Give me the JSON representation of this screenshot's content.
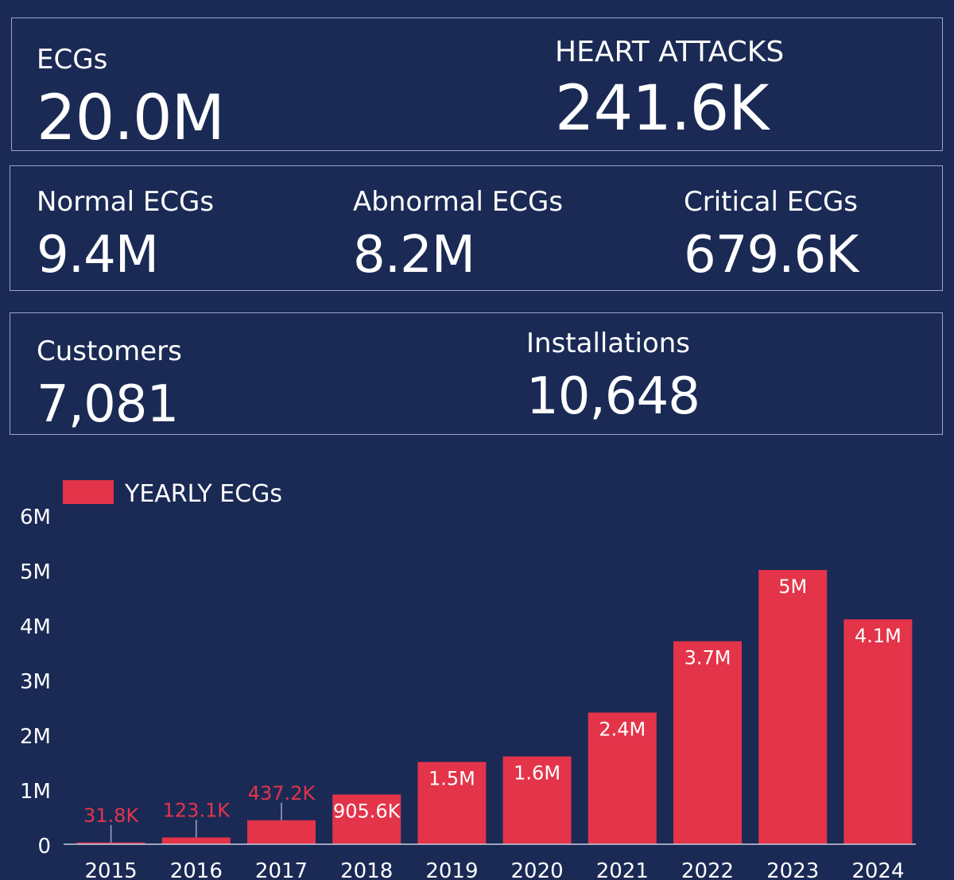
{
  "row1": {
    "ecgs": {
      "label": "ECGs",
      "value": "20.0M"
    },
    "heart_attacks": {
      "label": "HEART ATTACKS",
      "value": "241.6K"
    }
  },
  "row2": {
    "normal": {
      "label": "Normal ECGs",
      "value": "9.4M"
    },
    "abnormal": {
      "label": "Abnormal ECGs",
      "value": "8.2M"
    },
    "critical": {
      "label": "Critical ECGs",
      "value": "679.6K"
    }
  },
  "row3": {
    "customers": {
      "label": "Customers",
      "value": "7,081"
    },
    "installations": {
      "label": "Installations",
      "value": "10,648"
    }
  },
  "colors": {
    "bar": "#e3344a",
    "background": "#1a2a55",
    "text": "#ffffff",
    "border": "#9aa6c4"
  },
  "chart_data": {
    "type": "bar",
    "legend": "YEARLY ECGs",
    "categories": [
      "2015",
      "2016",
      "2017",
      "2018",
      "2019",
      "2020",
      "2021",
      "2022",
      "2023",
      "2024"
    ],
    "values": [
      31800,
      123100,
      437200,
      905600,
      1500000,
      1600000,
      2400000,
      3700000,
      5000000,
      4100000
    ],
    "data_labels": [
      "31.8K",
      "123.1K",
      "437.2K",
      "905.6K",
      "1.5M",
      "1.6M",
      "2.4M",
      "3.7M",
      "5M",
      "4.1M"
    ],
    "ylim": [
      0,
      6000000
    ],
    "yticks": [
      0,
      1000000,
      2000000,
      3000000,
      4000000,
      5000000,
      6000000
    ],
    "ytick_labels": [
      "0",
      "1M",
      "2M",
      "3M",
      "4M",
      "5M",
      "6M"
    ]
  }
}
